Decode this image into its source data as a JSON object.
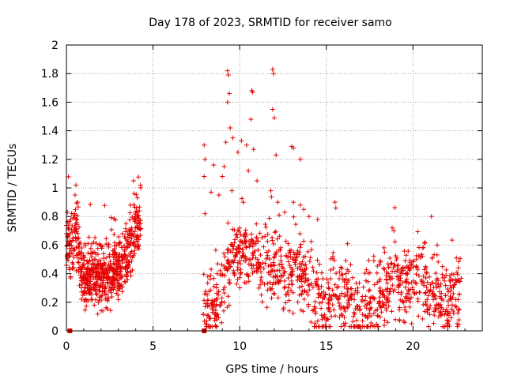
{
  "chart_data": {
    "type": "scatter",
    "title": "Day 178 of 2023, SRMTID for receiver samo",
    "xlabel": "GPS time / hours",
    "ylabel": "SRMTID / TECUs",
    "xlim": [
      0,
      24
    ],
    "ylim": [
      0,
      2
    ],
    "xticks": [
      "0",
      "5",
      "10",
      "15",
      "20"
    ],
    "yticks": [
      "0",
      "0.2",
      "0.4",
      "0.6",
      "0.8",
      "1",
      "1.2",
      "1.4",
      "1.6",
      "1.8",
      "2"
    ],
    "grid": true,
    "marker": "plus",
    "color": "#e60000",
    "zero_markers": [
      0.2,
      7.95
    ],
    "segments": [
      {
        "name": "early",
        "x_start": 0.0,
        "x_end": 4.3,
        "anchors": [
          [
            0.0,
            0.6
          ],
          [
            0.3,
            0.55
          ],
          [
            0.6,
            0.7
          ],
          [
            0.8,
            0.45
          ],
          [
            1.0,
            0.35
          ],
          [
            1.5,
            0.38
          ],
          [
            2.0,
            0.4
          ],
          [
            2.5,
            0.38
          ],
          [
            3.0,
            0.45
          ],
          [
            3.5,
            0.5
          ],
          [
            3.8,
            0.65
          ],
          [
            4.0,
            0.75
          ],
          [
            4.3,
            0.65
          ]
        ],
        "spread": 0.16,
        "density": 160,
        "spikes": [
          [
            0.55,
            1.02
          ],
          [
            0.5,
            0.95
          ],
          [
            0.65,
            0.9
          ],
          [
            3.9,
            0.96
          ],
          [
            4.1,
            0.93
          ],
          [
            3.7,
            0.88
          ],
          [
            0.1,
            0.72
          ]
        ]
      },
      {
        "name": "day",
        "x_start": 7.9,
        "x_end": 22.8,
        "anchors": [
          [
            7.9,
            0.2
          ],
          [
            8.5,
            0.12
          ],
          [
            9.0,
            0.3
          ],
          [
            9.5,
            0.5
          ],
          [
            10.0,
            0.55
          ],
          [
            10.5,
            0.55
          ],
          [
            11.0,
            0.5
          ],
          [
            11.5,
            0.45
          ],
          [
            12.0,
            0.45
          ],
          [
            12.5,
            0.4
          ],
          [
            13.0,
            0.4
          ],
          [
            13.5,
            0.45
          ],
          [
            14.0,
            0.35
          ],
          [
            14.5,
            0.25
          ],
          [
            15.0,
            0.15
          ],
          [
            15.5,
            0.3
          ],
          [
            16.0,
            0.25
          ],
          [
            16.5,
            0.2
          ],
          [
            17.0,
            0.1
          ],
          [
            17.5,
            0.2
          ],
          [
            18.0,
            0.25
          ],
          [
            18.5,
            0.3
          ],
          [
            19.0,
            0.35
          ],
          [
            19.5,
            0.3
          ],
          [
            20.0,
            0.35
          ],
          [
            20.5,
            0.35
          ],
          [
            21.0,
            0.3
          ],
          [
            21.5,
            0.22
          ],
          [
            22.0,
            0.2
          ],
          [
            22.5,
            0.22
          ],
          [
            22.8,
            0.22
          ]
        ],
        "spread": 0.2,
        "density": 75,
        "spikes": [
          [
            9.3,
            1.82
          ],
          [
            9.35,
            1.79
          ],
          [
            9.4,
            1.66
          ],
          [
            9.3,
            1.6
          ],
          [
            11.9,
            1.83
          ],
          [
            11.95,
            1.8
          ],
          [
            10.7,
            1.68
          ],
          [
            10.75,
            1.67
          ],
          [
            11.9,
            1.55
          ],
          [
            12.0,
            1.49
          ],
          [
            10.65,
            1.48
          ],
          [
            9.45,
            1.42
          ],
          [
            13.0,
            1.29
          ],
          [
            13.1,
            1.28
          ],
          [
            7.95,
            1.3
          ],
          [
            8.0,
            1.2
          ],
          [
            9.2,
            1.32
          ],
          [
            9.6,
            1.35
          ],
          [
            10.1,
            1.33
          ],
          [
            10.4,
            1.3
          ],
          [
            10.8,
            1.27
          ],
          [
            9.9,
            1.25
          ],
          [
            12.1,
            1.23
          ],
          [
            13.5,
            1.2
          ],
          [
            8.5,
            1.16
          ],
          [
            9.1,
            1.15
          ],
          [
            10.5,
            1.12
          ],
          [
            11.0,
            1.05
          ],
          [
            7.95,
            1.08
          ],
          [
            8.0,
            0.82
          ],
          [
            8.35,
            0.97
          ],
          [
            8.8,
            0.95
          ],
          [
            9.0,
            1.08
          ],
          [
            9.55,
            0.98
          ],
          [
            11.8,
            0.98
          ],
          [
            12.2,
            0.9
          ],
          [
            12.6,
            0.83
          ],
          [
            13.1,
            0.9
          ],
          [
            13.5,
            0.88
          ],
          [
            14.0,
            0.8
          ],
          [
            14.5,
            0.78
          ],
          [
            15.5,
            0.9
          ],
          [
            15.55,
            0.86
          ],
          [
            18.8,
            0.72
          ],
          [
            18.9,
            0.7
          ],
          [
            20.7,
            0.62
          ],
          [
            21.4,
            0.6
          ]
        ]
      }
    ]
  }
}
